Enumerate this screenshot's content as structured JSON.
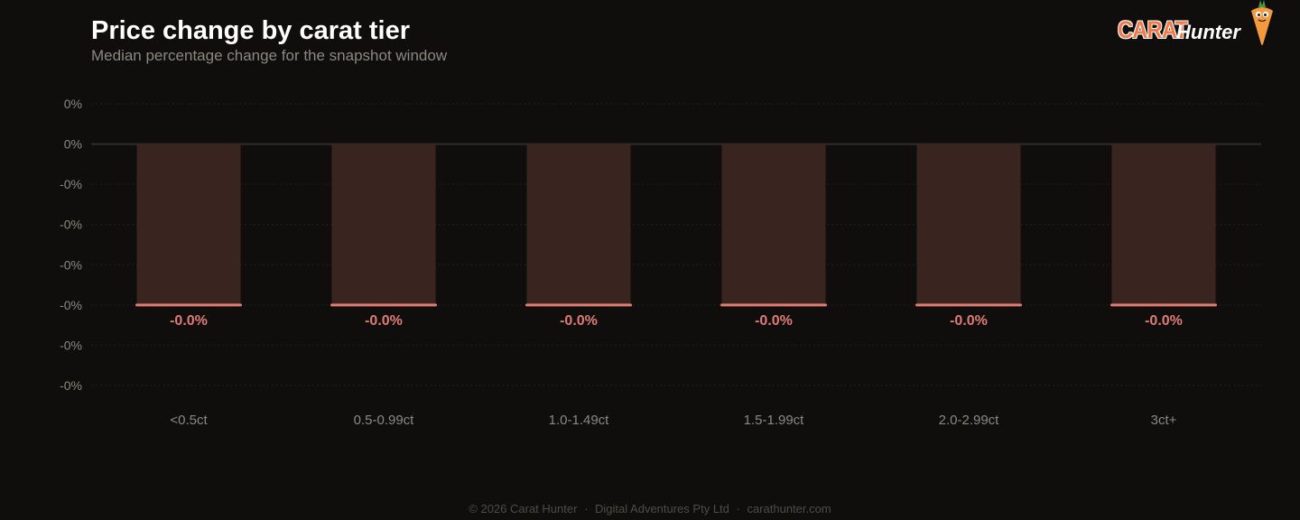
{
  "header": {
    "title": "Price change by carat tier",
    "subtitle": "Median percentage change for the snapshot window"
  },
  "logo": {
    "word_carat": "CARAT",
    "word_hunter": "Hunter",
    "mascot_icon": "carrot-mascot-icon"
  },
  "colors": {
    "background": "#0f0e0d",
    "bar_fill": "#3a2420",
    "bar_edge": "#e07b74",
    "value_label": "#e07b74",
    "axis_text": "#8d8780",
    "zero_line": "#2f2c2a",
    "grid": "#222020"
  },
  "chart_data": {
    "type": "bar",
    "title": "Price change by carat tier",
    "subtitle": "Median percentage change for the snapshot window",
    "xlabel": "",
    "ylabel": "",
    "categories": [
      "<0.5ct",
      "0.5-0.99ct",
      "1.0-1.49ct",
      "1.5-1.99ct",
      "2.0-2.99ct",
      "3ct+"
    ],
    "values": [
      -0.0004,
      -0.0004,
      -0.0004,
      -0.0004,
      -0.0004,
      -0.0004
    ],
    "value_labels": [
      "-0.0%",
      "-0.0%",
      "-0.0%",
      "-0.0%",
      "-0.0%",
      "-0.0%"
    ],
    "y_ticks": [
      0.0001,
      0,
      -0.0001,
      -0.0002,
      -0.0003,
      -0.0004,
      -0.0005,
      -0.0006
    ],
    "y_tick_labels": [
      "0%",
      "0%",
      "-0%",
      "-0%",
      "-0%",
      "-0%",
      "-0%",
      "-0%"
    ],
    "ylim": [
      -0.0006,
      0.0001
    ],
    "grid": true,
    "legend": "none"
  },
  "footer": {
    "copyright": "© 2026 Carat Hunter",
    "company": "Digital Adventures Pty Ltd",
    "site": "carathunter.com",
    "separator": "·"
  }
}
